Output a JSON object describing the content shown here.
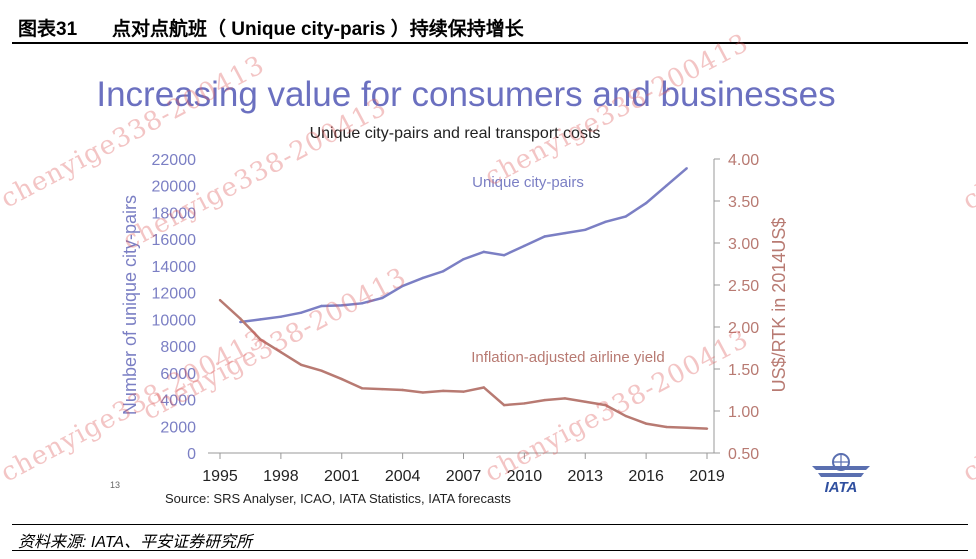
{
  "header": {
    "figure_label": "图表31",
    "figure_title": "点对点航班（ Unique city-paris ）持续保持增长"
  },
  "footer": {
    "source_note": "资料来源: IATA、平安证券研究所"
  },
  "watermark_text": "chenyige338-200413",
  "slide_page_number": "13",
  "logo_text": "IATA",
  "colors": {
    "city_pairs": "#7b7fc4",
    "yield": "#b87a72",
    "title": "#6b70c0"
  },
  "chart_data": {
    "type": "line",
    "title": "Increasing value for consumers and businesses",
    "subtitle": "Unique city-pairs and real transport costs",
    "source": "Source: SRS Analyser, ICAO, IATA Statistics, IATA forecasts",
    "x_ticks": [
      1995,
      1998,
      2001,
      2004,
      2007,
      2010,
      2013,
      2016,
      2019
    ],
    "xlim": [
      1995,
      2019
    ],
    "left_axis": {
      "label": "Number of unique city-pairs",
      "ylim": [
        0,
        22000
      ],
      "ticks": [
        "0",
        "2000",
        "4000",
        "6000",
        "8000",
        "10000",
        "12000",
        "14000",
        "16000",
        "18000",
        "20000",
        "22000"
      ]
    },
    "right_axis": {
      "label": "US$/RTK in 2014US$",
      "ylim": [
        0.5,
        4.0
      ],
      "ticks": [
        "0.50",
        "1.00",
        "1.50",
        "2.00",
        "2.50",
        "3.00",
        "3.50",
        "4.00"
      ]
    },
    "series": [
      {
        "name": "Unique city-pairs",
        "axis": "left",
        "x": [
          1996,
          1997,
          1998,
          1999,
          2000,
          2001,
          2002,
          2003,
          2004,
          2005,
          2006,
          2007,
          2008,
          2009,
          2010,
          2011,
          2012,
          2013,
          2014,
          2015,
          2016,
          2017,
          2018
        ],
        "values": [
          9800,
          10000,
          10200,
          10500,
          11000,
          11050,
          11200,
          11600,
          12500,
          13100,
          13600,
          14500,
          15050,
          14800,
          15500,
          16200,
          16450,
          16700,
          17300,
          17700,
          18700,
          20000,
          21300
        ]
      },
      {
        "name": "Inflation-adjusted airline yield",
        "axis": "right",
        "x": [
          1995,
          1996,
          1997,
          1998,
          1999,
          2000,
          2001,
          2002,
          2003,
          2004,
          2005,
          2006,
          2007,
          2008,
          2009,
          2010,
          2011,
          2012,
          2013,
          2014,
          2015,
          2016,
          2017,
          2018,
          2019
        ],
        "values": [
          2.32,
          2.1,
          1.85,
          1.7,
          1.55,
          1.48,
          1.38,
          1.27,
          1.26,
          1.25,
          1.22,
          1.24,
          1.23,
          1.28,
          1.07,
          1.09,
          1.13,
          1.15,
          1.11,
          1.07,
          0.94,
          0.85,
          0.81,
          0.8,
          0.79
        ]
      }
    ]
  }
}
